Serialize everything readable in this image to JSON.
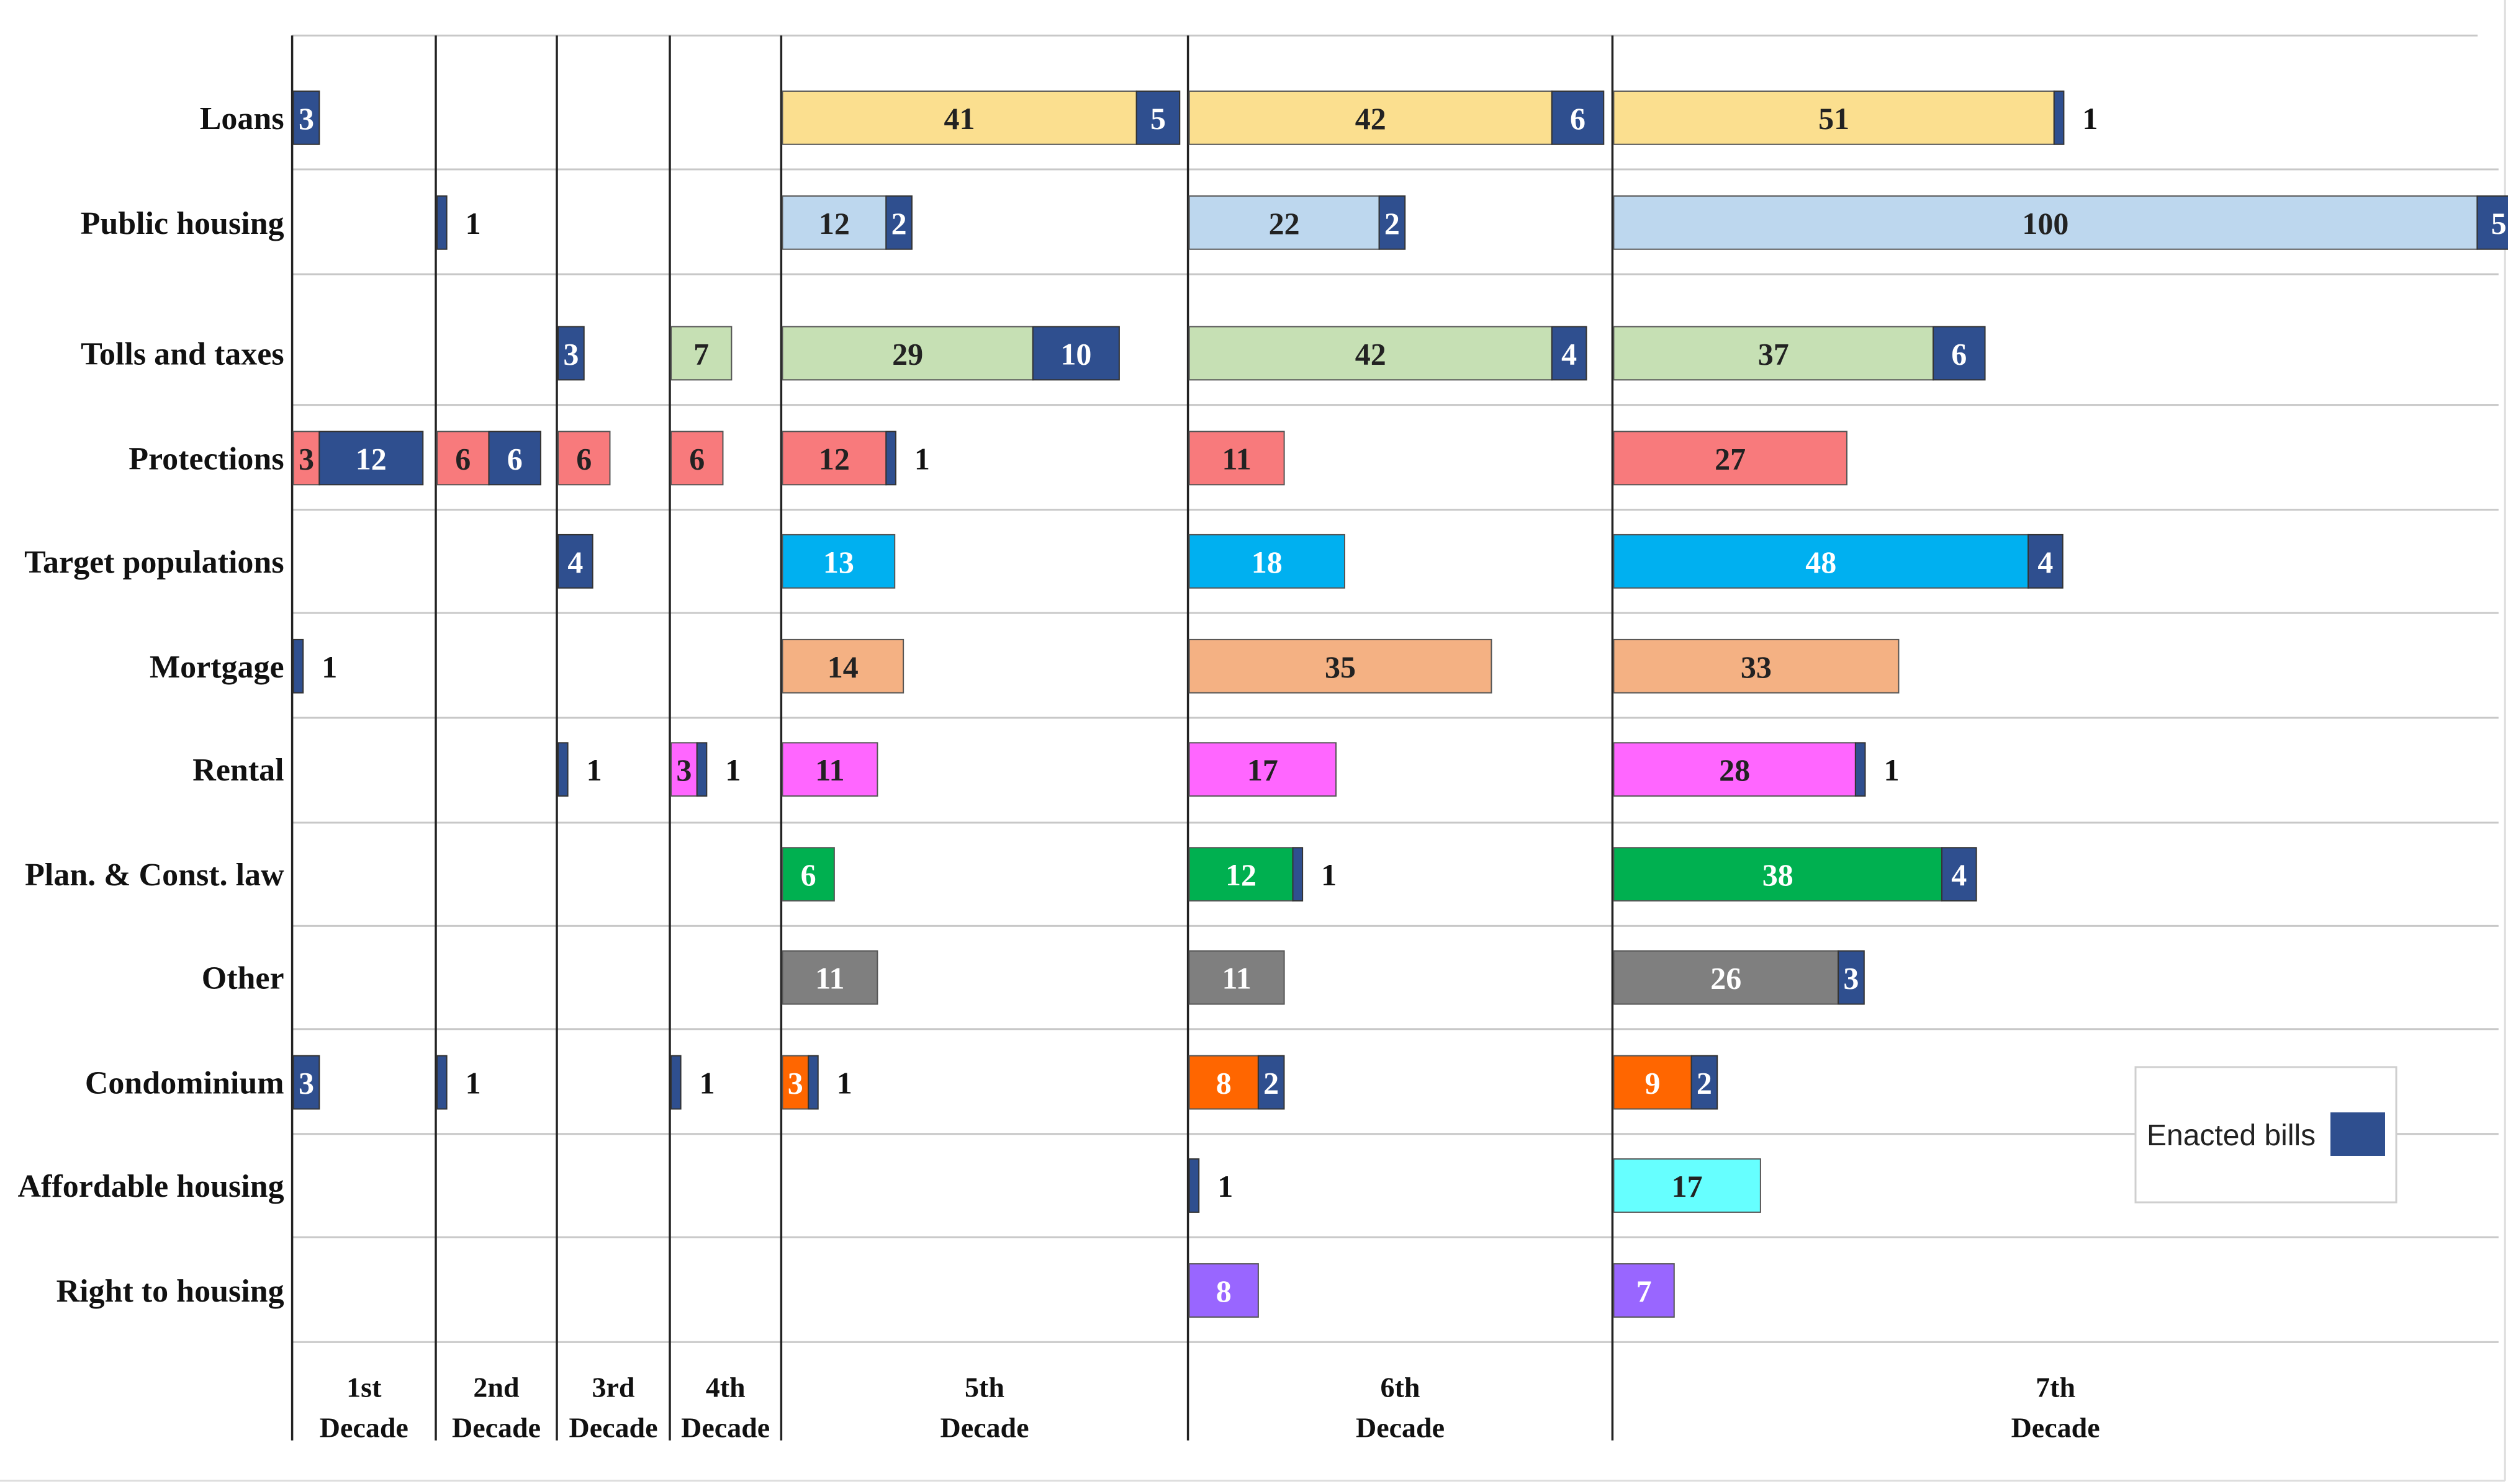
{
  "chart_data": {
    "type": "bar",
    "orientation": "horizontal",
    "stacked": true,
    "title": "",
    "decades": [
      "1st Decade",
      "2nd Decade",
      "3rd Decade",
      "4th Decade",
      "5th Decade",
      "6th Decade",
      "7th Decade"
    ],
    "decade_lines": [
      [
        "1st",
        "Decade"
      ],
      [
        "2nd",
        "Decade"
      ],
      [
        "3rd",
        "Decade"
      ],
      [
        "4th",
        "Decade"
      ],
      [
        "5th",
        "Decade"
      ],
      [
        "6th",
        "Decade"
      ],
      [
        "7th",
        "Decade"
      ]
    ],
    "categories": [
      "Loans",
      "Public housing",
      "Tolls and taxes",
      "Protections",
      "Target populations",
      "Mortgage",
      "Rental",
      "Plan. & Const. law",
      "Other",
      "Condominium",
      "Affordable housing",
      "Right to housing"
    ],
    "category_colors": [
      "#FBDF8F",
      "#BDD7EE",
      "#C6E0B4",
      "#F87A7C",
      "#00B0F0",
      "#F4B183",
      "#FF66FF",
      "#00B050",
      "#7F7F7F",
      "#FF6600",
      "#66FFFF",
      "#9966FF"
    ],
    "enacted_color": "#2F4F8F",
    "legend": {
      "label": "Enacted bills",
      "position": "bottom-right"
    },
    "series": [
      {
        "name": "",
        "values": [
          [
            null,
            null,
            null,
            null,
            41,
            42,
            51
          ],
          [
            null,
            null,
            null,
            null,
            12,
            22,
            100
          ],
          [
            null,
            null,
            null,
            7,
            29,
            42,
            37
          ],
          [
            3,
            6,
            6,
            6,
            12,
            11,
            27
          ],
          [
            null,
            null,
            null,
            null,
            13,
            18,
            48
          ],
          [
            null,
            null,
            null,
            null,
            14,
            35,
            33
          ],
          [
            null,
            null,
            null,
            3,
            11,
            17,
            28
          ],
          [
            null,
            null,
            null,
            null,
            6,
            12,
            38
          ],
          [
            null,
            null,
            null,
            null,
            11,
            11,
            26
          ],
          [
            null,
            null,
            null,
            null,
            3,
            8,
            9
          ],
          [
            null,
            null,
            null,
            null,
            null,
            null,
            17
          ],
          [
            null,
            null,
            null,
            null,
            null,
            8,
            7
          ]
        ]
      },
      {
        "name": "Enacted bills",
        "values": [
          [
            3,
            null,
            null,
            null,
            5,
            6,
            1
          ],
          [
            null,
            1,
            null,
            null,
            2,
            2,
            5
          ],
          [
            null,
            null,
            3,
            null,
            10,
            4,
            6
          ],
          [
            12,
            6,
            null,
            null,
            1,
            null,
            null
          ],
          [
            null,
            null,
            4,
            null,
            null,
            null,
            4
          ],
          [
            1,
            null,
            null,
            null,
            null,
            null,
            null
          ],
          [
            null,
            null,
            1,
            1,
            null,
            null,
            1
          ],
          [
            null,
            null,
            null,
            null,
            null,
            1,
            4
          ],
          [
            null,
            null,
            null,
            null,
            null,
            null,
            3
          ],
          [
            3,
            1,
            null,
            1,
            1,
            2,
            2
          ],
          [
            null,
            null,
            null,
            null,
            null,
            1,
            null
          ],
          [
            null,
            null,
            null,
            null,
            null,
            null,
            null
          ]
        ]
      }
    ]
  }
}
